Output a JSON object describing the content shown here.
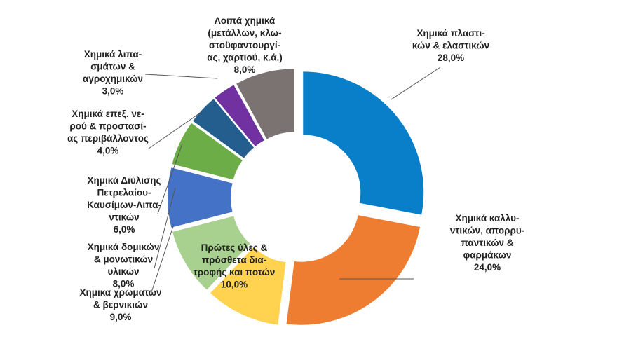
{
  "chart_data": {
    "type": "pie",
    "donut": true,
    "legend": "none",
    "slices": [
      {
        "label_lines": [
          "Χημικά πλαστι-",
          "κών & ελαστικών"
        ],
        "value": 28.0,
        "value_text": "28,0%",
        "color": "#0a7fc9"
      },
      {
        "label_lines": [
          "Χημικά καλλυ-",
          "ντικών, απορρυ-",
          "παντικών &",
          "φαρμάκων"
        ],
        "value": 24.0,
        "value_text": "24,0%",
        "color": "#ee7d31"
      },
      {
        "label_lines": [
          "Πρώτες ύλες &",
          "πρόσθετα δια-",
          "τροφής και ποτών"
        ],
        "value": 10.0,
        "value_text": "10,0%",
        "color": "#ffd34f"
      },
      {
        "label_lines": [
          "Χημικα χρωματων",
          "& βερνικιών"
        ],
        "value": 9.0,
        "value_text": "9,0%",
        "color": "#a8d08e"
      },
      {
        "label_lines": [
          "Χημικά δομικών",
          "& μονωτικών",
          "υλικών"
        ],
        "value": 8.0,
        "value_text": "8,0%",
        "color": "#4472c6"
      },
      {
        "label_lines": [
          "Χημικά Διύλισης",
          "Πετρελαίου-",
          "Καυσίμων-Λιπα-",
          "ντικών"
        ],
        "value": 6.0,
        "value_text": "6,0%",
        "color": "#6dad47"
      },
      {
        "label_lines": [
          "Χημικά επεξ. νε-",
          "ρού & προστασί-",
          "ας περιβάλλοντος"
        ],
        "value": 4.0,
        "value_text": "4,0%",
        "color": "#245e8f"
      },
      {
        "label_lines": [
          "Χημικά λιπα-",
          "σμάτων &",
          "αγροχημικών"
        ],
        "value": 3.0,
        "value_text": "3,0%",
        "color": "#7131a1"
      },
      {
        "label_lines": [
          "Λοιπά χημικά",
          "(μετάλλων, κλω-",
          "στοϋφαντουργί-",
          "ας, χαρτιού, κ.ά.)"
        ],
        "value": 8.0,
        "value_text": "8,0%",
        "color": "#7b7372"
      }
    ]
  }
}
